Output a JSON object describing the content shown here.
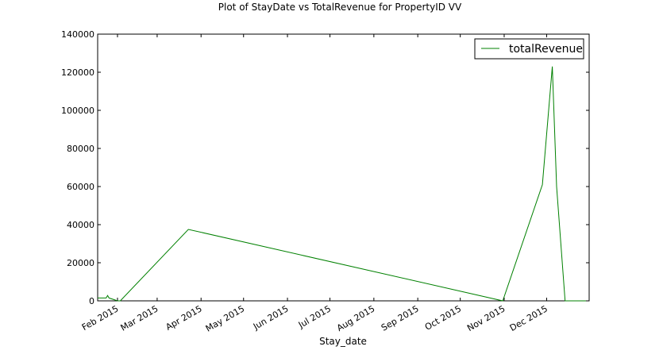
{
  "chart_data": {
    "type": "line",
    "title": "Plot of StayDate vs TotalRevenue for PropertyID VV",
    "xlabel": "Stay_date",
    "ylabel": "",
    "xlim": [
      "2015-01-18",
      "2015-12-31"
    ],
    "ylim": [
      0,
      140000
    ],
    "grid": false,
    "legend_position": "top-right",
    "x_ticks": [
      {
        "date": "2015-02-01",
        "label": "Feb 2015"
      },
      {
        "date": "2015-03-01",
        "label": "Mar 2015"
      },
      {
        "date": "2015-04-01",
        "label": "Apr 2015"
      },
      {
        "date": "2015-05-01",
        "label": "May 2015"
      },
      {
        "date": "2015-06-01",
        "label": "Jun 2015"
      },
      {
        "date": "2015-07-01",
        "label": "Jul 2015"
      },
      {
        "date": "2015-08-01",
        "label": "Aug 2015"
      },
      {
        "date": "2015-09-01",
        "label": "Sep 2015"
      },
      {
        "date": "2015-10-01",
        "label": "Oct 2015"
      },
      {
        "date": "2015-11-01",
        "label": "Nov 2015"
      },
      {
        "date": "2015-12-01",
        "label": "Dec 2015"
      }
    ],
    "y_ticks": [
      {
        "value": 0,
        "label": "0"
      },
      {
        "value": 20000,
        "label": "20000"
      },
      {
        "value": 40000,
        "label": "40000"
      },
      {
        "value": 60000,
        "label": "60000"
      },
      {
        "value": 80000,
        "label": "80000"
      },
      {
        "value": 100000,
        "label": "100000"
      },
      {
        "value": 120000,
        "label": "120000"
      },
      {
        "value": 140000,
        "label": "140000"
      }
    ],
    "series": [
      {
        "name": "totalRevenue",
        "color": "#008000",
        "points": [
          {
            "x": "2015-01-18",
            "y": 1500
          },
          {
            "x": "2015-01-24",
            "y": 1500
          },
          {
            "x": "2015-01-25",
            "y": 2800
          },
          {
            "x": "2015-01-26",
            "y": 1500
          },
          {
            "x": "2015-01-29",
            "y": 800
          },
          {
            "x": "2015-02-01",
            "y": 0
          },
          {
            "x": "2015-02-03",
            "y": 0
          },
          {
            "x": "2015-03-23",
            "y": 37500
          },
          {
            "x": "2015-10-31",
            "y": 0
          },
          {
            "x": "2015-11-28",
            "y": 61000
          },
          {
            "x": "2015-12-05",
            "y": 123000
          },
          {
            "x": "2015-12-08",
            "y": 60000
          },
          {
            "x": "2015-12-14",
            "y": 0
          },
          {
            "x": "2015-12-31",
            "y": 0
          }
        ]
      }
    ]
  }
}
